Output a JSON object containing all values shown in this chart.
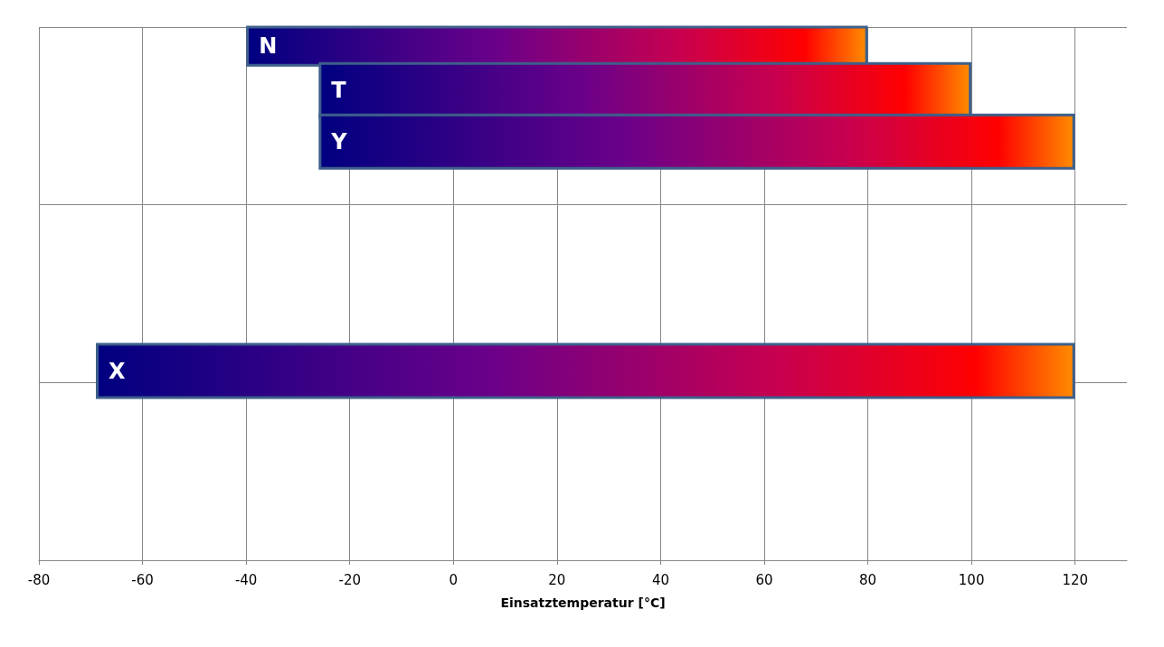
{
  "chart_data": {
    "type": "bar",
    "orientation": "horizontal",
    "xlabel": "Einsatztemperatur [°C]",
    "categories": [
      null,
      null,
      null
    ],
    "series": [
      {
        "name": "N",
        "color": "#3e5f8a",
        "values": [
          120,
          null,
          null
        ],
        "base": [
          -40,
          null,
          null
        ]
      },
      {
        "name": "T",
        "color": "#3e5f8a",
        "values": [
          126,
          null,
          null
        ],
        "base": [
          -26,
          null,
          null
        ]
      },
      {
        "name": "Y",
        "color": "#3e5f8a",
        "values": [
          146,
          null,
          null
        ],
        "base": [
          -26,
          null,
          null
        ]
      },
      {
        "name": "X",
        "color": "#3e5f8a",
        "values": [
          null,
          189,
          null
        ],
        "base": [
          null,
          -69,
          null
        ]
      }
    ],
    "xlim": [
      -80,
      130
    ],
    "xticks": [
      -80,
      -60,
      -40,
      -20,
      0,
      20,
      40,
      60,
      80,
      100,
      120
    ],
    "grid": true,
    "legend": false
  }
}
